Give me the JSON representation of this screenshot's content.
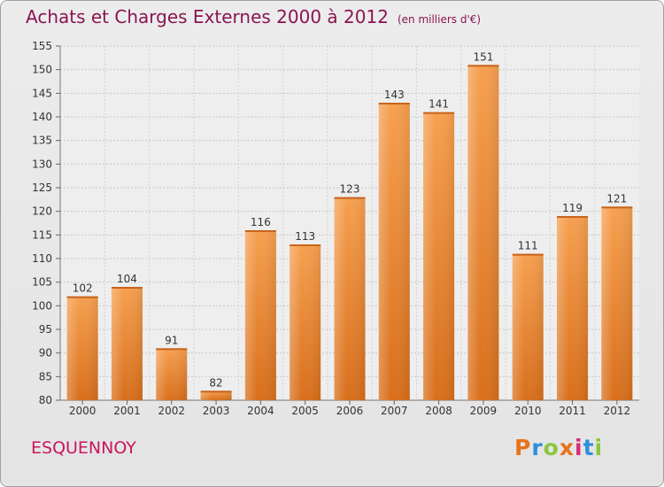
{
  "title": "Achats et Charges Externes 2000 à 2012",
  "unit": "(en milliers d'€)",
  "commune": "ESQUENNOY",
  "logo": {
    "text": "Proxiti",
    "colors": [
      "#e8731a",
      "#2f8fd8",
      "#8cc63f",
      "#e8731a",
      "#d62d7b",
      "#2f8fd8",
      "#8cc63f"
    ]
  },
  "chart_data": {
    "type": "bar",
    "categories": [
      "2000",
      "2001",
      "2002",
      "2003",
      "2004",
      "2005",
      "2006",
      "2007",
      "2008",
      "2009",
      "2010",
      "2011",
      "2012"
    ],
    "values": [
      102,
      104,
      91,
      82,
      116,
      113,
      123,
      143,
      141,
      151,
      111,
      119,
      121
    ],
    "title": "Achats et Charges Externes 2000 à 2012",
    "ylim": [
      80,
      155
    ],
    "yticks": [
      80,
      85,
      90,
      95,
      100,
      105,
      110,
      115,
      120,
      125,
      130,
      135,
      140,
      145,
      150,
      155
    ],
    "grid": true,
    "bar_color": "#f0953f"
  }
}
